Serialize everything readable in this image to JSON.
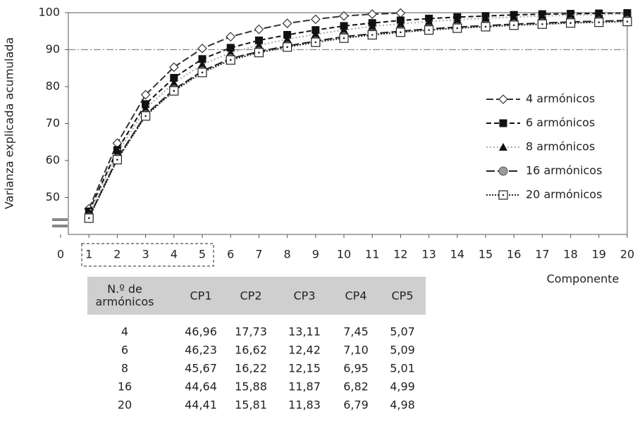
{
  "chart_data": {
    "type": "line",
    "y_label": "Varianza explicada acumulada",
    "x_label": "Componente",
    "x": [
      1,
      2,
      3,
      4,
      5,
      6,
      7,
      8,
      9,
      10,
      11,
      12,
      13,
      14,
      15,
      16,
      17,
      18,
      19,
      20
    ],
    "xlim": [
      0,
      20
    ],
    "xticks": [
      0,
      1,
      2,
      3,
      4,
      5,
      6,
      7,
      8,
      9,
      10,
      11,
      12,
      13,
      14,
      15,
      16,
      17,
      18,
      19,
      20
    ],
    "ylim": [
      40,
      100
    ],
    "yticks": [
      50,
      60,
      70,
      80,
      90,
      100
    ],
    "reference_line": 90,
    "legend": "right",
    "series": [
      {
        "name": "4 armónicos",
        "color": "#333333",
        "marker": "diamond",
        "dash": "10,4",
        "values": [
          46.96,
          64.69,
          77.8,
          85.25,
          90.32,
          93.5,
          95.5,
          97.1,
          98.2,
          99.1,
          99.6,
          99.9,
          null,
          null,
          null,
          null,
          null,
          null,
          null,
          null
        ]
      },
      {
        "name": "6 armónicos",
        "color": "#111111",
        "marker": "square",
        "dash": "7,4",
        "values": [
          46.23,
          62.85,
          75.27,
          82.37,
          87.46,
          90.5,
          92.5,
          94.0,
          95.3,
          96.4,
          97.2,
          97.9,
          98.4,
          98.8,
          99.1,
          99.4,
          99.6,
          99.7,
          99.8,
          99.9
        ]
      },
      {
        "name": "8 armónicos",
        "color": "#aaaaaa",
        "marker": "triangle",
        "dash": "2,3",
        "values": [
          45.67,
          61.89,
          74.04,
          80.99,
          86.0,
          89.2,
          91.2,
          92.8,
          94.2,
          95.3,
          96.3,
          97.0,
          97.6,
          98.1,
          98.5,
          98.8,
          99.1,
          99.3,
          99.5,
          99.6
        ]
      },
      {
        "name": "16 armónicos",
        "color": "#222222",
        "marker": "circle",
        "dash": "12,4",
        "values": [
          44.64,
          60.52,
          72.39,
          79.21,
          84.2,
          87.6,
          89.5,
          91.0,
          92.3,
          93.5,
          94.3,
          95.0,
          95.6,
          96.1,
          96.5,
          96.9,
          97.2,
          97.5,
          97.7,
          97.9
        ]
      },
      {
        "name": "20 armónicos",
        "color": "#222222",
        "marker": "dotsquare",
        "dash": "2,2",
        "values": [
          44.41,
          60.22,
          72.05,
          78.84,
          83.82,
          87.2,
          89.2,
          90.7,
          92.0,
          93.1,
          94.0,
          94.7,
          95.3,
          95.8,
          96.2,
          96.6,
          96.9,
          97.2,
          97.4,
          97.6
        ]
      }
    ]
  },
  "table": {
    "header": [
      "N.º de armónicos",
      "CP1",
      "CP2",
      "CP3",
      "CP4",
      "CP5"
    ],
    "rows": [
      [
        "4",
        "46,96",
        "17,73",
        "13,11",
        "7,45",
        "5,07"
      ],
      [
        "6",
        "46,23",
        "16,62",
        "12,42",
        "7,10",
        "5,09"
      ],
      [
        "8",
        "45,67",
        "16,22",
        "12,15",
        "6,95",
        "5,01"
      ],
      [
        "16",
        "44,64",
        "15,88",
        "11,87",
        "6,82",
        "4,99"
      ],
      [
        "20",
        "44,41",
        "15,81",
        "11,83",
        "6,79",
        "4,98"
      ]
    ]
  }
}
